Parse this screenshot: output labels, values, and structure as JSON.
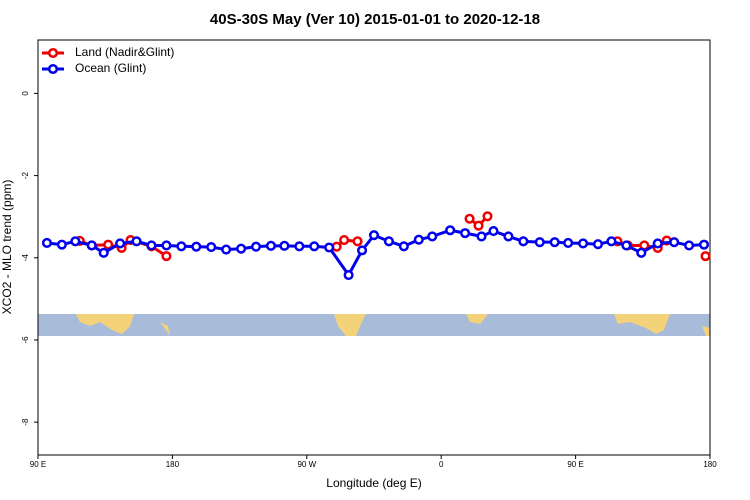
{
  "chart_data": {
    "type": "line",
    "title": "40S-30S May (Ver 10)   2015-01-01 to 2020-12-18",
    "x_label": "Longitude (deg E)",
    "y_label": "XCO2 - MLO trend (ppm)",
    "xlim": [
      90,
      540
    ],
    "ylim": [
      -8.8,
      1.3
    ],
    "xticks": [
      {
        "value": 90,
        "label": "90 E"
      },
      180,
      {
        "value": 270,
        "label": "90 W"
      },
      {
        "value": 360,
        "label": "0"
      },
      {
        "value": 450,
        "label": "90 E"
      },
      {
        "value": 540,
        "label": "180"
      }
    ],
    "yticks": [
      0,
      -2,
      -4,
      -6,
      -8
    ],
    "legend": "top-left",
    "series": [
      {
        "name": "Land (Nadir&Glint)",
        "color": "#ee0000",
        "x": [
          118,
          126,
          137,
          146,
          152,
          166,
          176,
          null,
          290,
          295,
          304,
          null,
          379,
          385,
          391,
          null,
          478,
          485,
          496,
          505,
          511,
          null,
          537
        ],
        "values": [
          -3.59,
          -3.7,
          -3.68,
          -3.76,
          -3.57,
          -3.72,
          -3.96,
          null,
          -3.73,
          -3.57,
          -3.6,
          null,
          -3.05,
          -3.22,
          -2.99,
          null,
          -3.6,
          -3.7,
          -3.7,
          -3.76,
          -3.58,
          null,
          -3.96
        ]
      },
      {
        "name": "Ocean (Glint)",
        "color": "#0000ee",
        "x": [
          96,
          106,
          115,
          126,
          134,
          145,
          156,
          166,
          176,
          186,
          196,
          206,
          216,
          226,
          236,
          246,
          255,
          265,
          275,
          285,
          298,
          307,
          315,
          325,
          335,
          345,
          354,
          366,
          376,
          387,
          395,
          405,
          415,
          426,
          436,
          445,
          455,
          465,
          474,
          484,
          494,
          505,
          516,
          526,
          536
        ],
        "values": [
          -3.64,
          -3.68,
          -3.6,
          -3.7,
          -3.88,
          -3.65,
          -3.6,
          -3.7,
          -3.7,
          -3.72,
          -3.73,
          -3.74,
          -3.8,
          -3.78,
          -3.73,
          -3.71,
          -3.71,
          -3.72,
          -3.72,
          -3.75,
          -4.42,
          -3.82,
          -3.45,
          -3.6,
          -3.72,
          -3.56,
          -3.48,
          -3.33,
          -3.4,
          -3.48,
          -3.35,
          -3.48,
          -3.6,
          -3.62,
          -3.62,
          -3.64,
          -3.65,
          -3.67,
          -3.6,
          -3.7,
          -3.88,
          -3.65,
          -3.62,
          -3.7,
          -3.68
        ]
      }
    ]
  }
}
